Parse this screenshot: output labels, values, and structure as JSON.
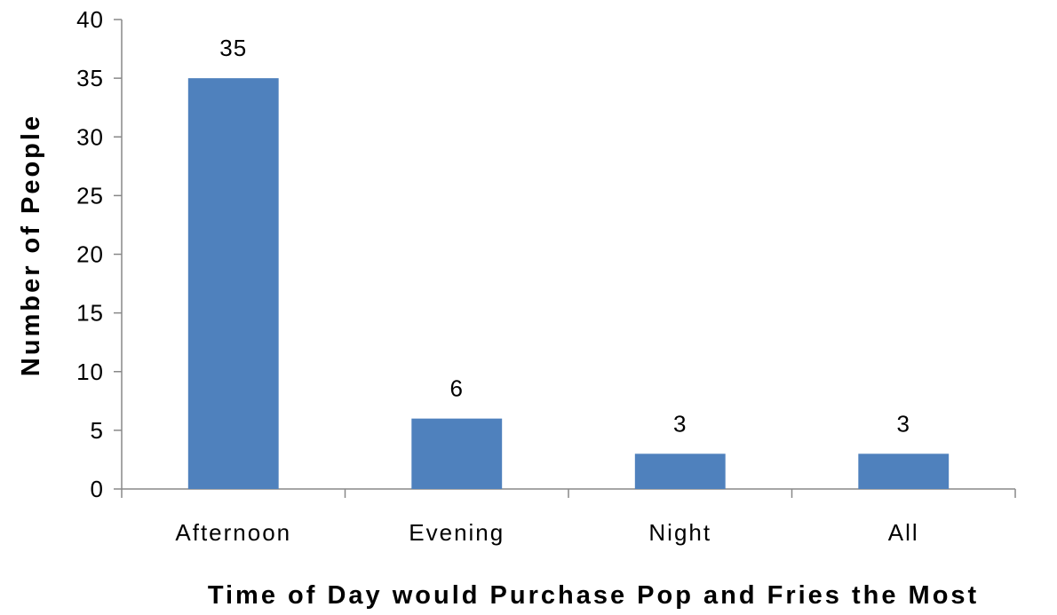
{
  "chart_data": {
    "type": "bar",
    "title": "",
    "xlabel": "Time of Day would Purchase Pop and Fries the Most",
    "ylabel": "Number of People",
    "categories": [
      "Afternoon",
      "Evening",
      "Night",
      "All"
    ],
    "values": [
      35,
      6,
      3,
      3
    ],
    "data_labels": [
      "35",
      "6",
      "3",
      "3"
    ],
    "ylim": [
      0,
      40
    ],
    "yticks": [
      0,
      5,
      10,
      15,
      20,
      25,
      30,
      35,
      40
    ],
    "grid": false,
    "legend": "none",
    "bar_color": "#4F81BD",
    "axis_color": "#888888"
  }
}
